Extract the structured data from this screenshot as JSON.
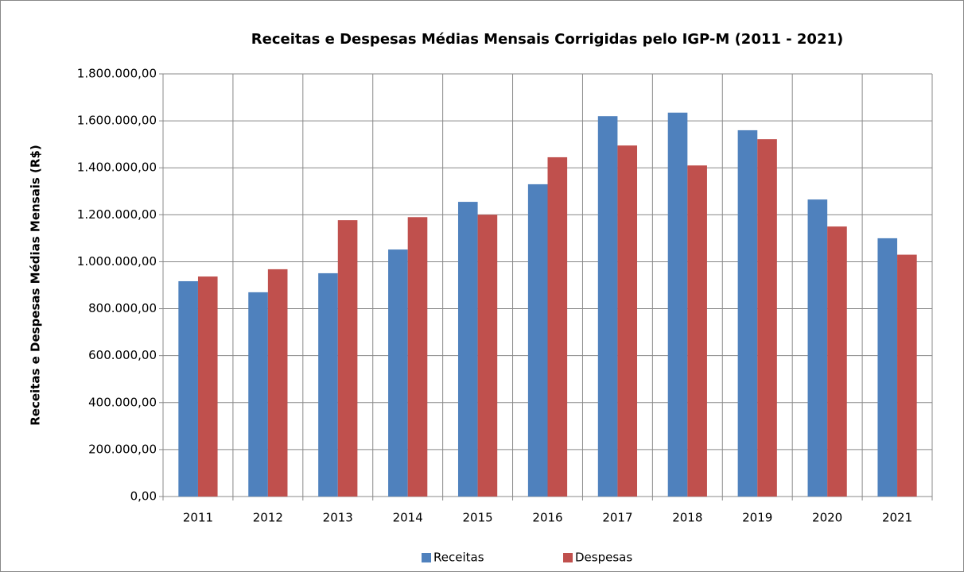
{
  "chart_data": {
    "type": "bar",
    "title": "Receitas e Despesas Médias Mensais Corrigidas pelo IGP-M (2011 - 2021)",
    "y_label": "Receitas e Despesas Médias Mensais (R$)",
    "categories": [
      "2011",
      "2012",
      "2013",
      "2014",
      "2015",
      "2016",
      "2017",
      "2018",
      "2019",
      "2020",
      "2021"
    ],
    "series": [
      {
        "name": "Receitas",
        "color": "#4f81bd",
        "values": [
          917000,
          870000,
          951000,
          1052000,
          1255000,
          1330000,
          1620000,
          1635000,
          1560000,
          1265000,
          1100000
        ]
      },
      {
        "name": "Despesas",
        "color": "#c0504d",
        "values": [
          937000,
          968000,
          1177000,
          1190000,
          1200000,
          1445000,
          1495000,
          1410000,
          1522000,
          1150000,
          1030000
        ]
      }
    ],
    "ylim": [
      0,
      1800000
    ],
    "yticks": [
      {
        "value": 0,
        "label": "0,00"
      },
      {
        "value": 200000,
        "label": "200.000,00"
      },
      {
        "value": 400000,
        "label": "400.000,00"
      },
      {
        "value": 600000,
        "label": "600.000,00"
      },
      {
        "value": 800000,
        "label": "800.000,00"
      },
      {
        "value": 1000000,
        "label": "1.000.000,00"
      },
      {
        "value": 1200000,
        "label": "1.200.000,00"
      },
      {
        "value": 1400000,
        "label": "1.400.000,00"
      },
      {
        "value": 1600000,
        "label": "1.600.000,00"
      },
      {
        "value": 1800000,
        "label": "1.800.000,00"
      }
    ],
    "grid": true,
    "legend": "bottom"
  }
}
